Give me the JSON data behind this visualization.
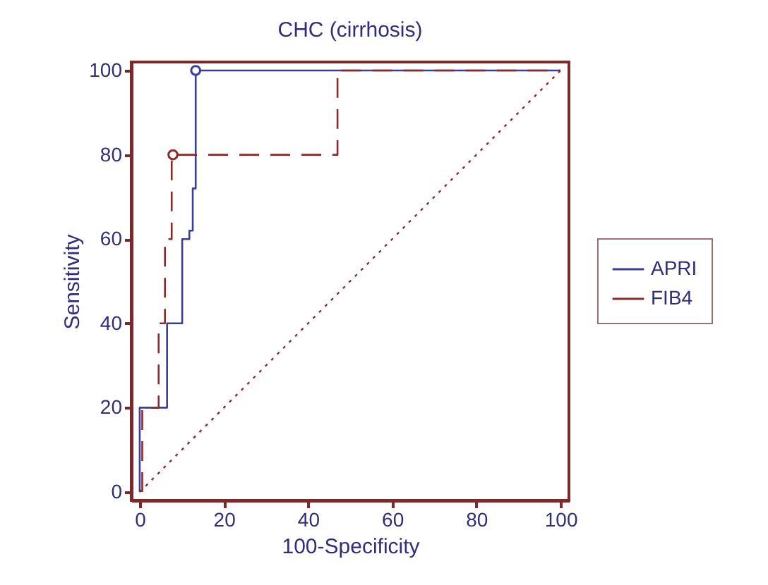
{
  "chart_data": {
    "type": "line",
    "title": "CHC (cirrhosis)",
    "xlabel": "100-Specificity",
    "ylabel": "Sensitivity",
    "series": [
      {
        "name": "APRI",
        "color": "#3a3d9a",
        "line_style": "solid",
        "x": [
          0,
          0,
          6.5,
          6.5,
          10.1,
          10.1,
          11.8,
          11.8,
          12.6,
          12.6,
          13.3,
          13.3,
          100
        ],
        "values": [
          0,
          20,
          20,
          40,
          40,
          60,
          60,
          62,
          62,
          72,
          72,
          100,
          100
        ]
      },
      {
        "name": "FIB4",
        "color": "#8b2a2a",
        "line_style": "dashed",
        "x": [
          0.6,
          0.6,
          4.5,
          4.5,
          6,
          6,
          7.6,
          7.6,
          47,
          47,
          100
        ],
        "values": [
          0,
          20,
          20,
          40,
          40,
          60,
          60,
          80,
          80,
          100,
          100
        ]
      },
      {
        "color": "#8b2a2a",
        "line_style": "dotted",
        "x": [
          0,
          100
        ],
        "values": [
          0,
          100
        ]
      },
      {
        "type": "scatter",
        "marker": "circle",
        "color": "#3a3d9a",
        "x": [
          13.3
        ],
        "values": [
          100
        ]
      },
      {
        "type": "scatter",
        "marker": "circle",
        "color": "#8b2a2a",
        "x": [
          7.9
        ],
        "values": [
          80
        ]
      }
    ],
    "xlim": [
      -2,
      102
    ],
    "ylim": [
      -2,
      102
    ],
    "xticks": [
      0,
      20,
      40,
      60,
      80,
      100
    ],
    "yticks": [
      0,
      20,
      40,
      60,
      80,
      100
    ],
    "grid": false,
    "legend": "right"
  }
}
